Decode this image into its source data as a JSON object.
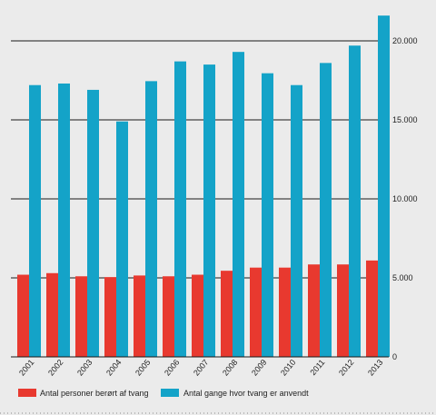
{
  "chart_data": {
    "type": "bar",
    "categories": [
      "2001",
      "2002",
      "2003",
      "2004",
      "2005",
      "2006",
      "2007",
      "2008",
      "2009",
      "2010",
      "2011",
      "2012",
      "2013"
    ],
    "series": [
      {
        "name": "Antal personer berørt af tvang",
        "color": "#e8392f",
        "values": [
          5200,
          5300,
          5100,
          5050,
          5150,
          5100,
          5200,
          5450,
          5650,
          5650,
          5850,
          5850,
          6100
        ]
      },
      {
        "name": "Antal gange hvor tvang er anvendt",
        "color": "#14a3c8",
        "values": [
          17200,
          17300,
          16900,
          14900,
          17450,
          18700,
          18500,
          19300,
          17950,
          17200,
          18600,
          19700,
          21600
        ]
      }
    ],
    "ylim": [
      0,
      22000
    ],
    "yticks": [
      0,
      5000,
      10000,
      15000,
      20000
    ],
    "ytick_labels": [
      "0",
      "5.000",
      "10.000",
      "15.000",
      "20.000"
    ],
    "gridlines": [
      5000,
      10000,
      15000,
      20000
    ],
    "legend_position": "bottom-left"
  }
}
